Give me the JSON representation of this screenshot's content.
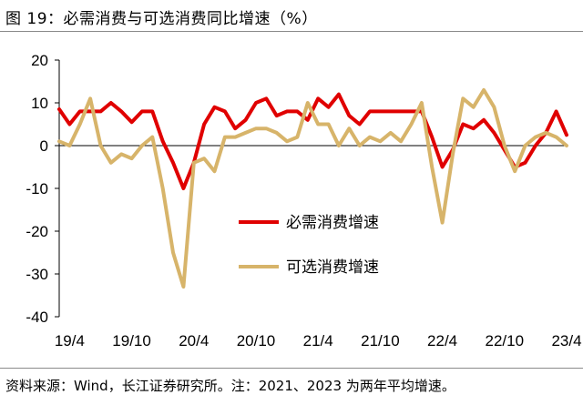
{
  "header": {
    "title": "图 19：必需消费与可选消费同比增速（%）"
  },
  "footer": {
    "source": "资料来源：Wind，长江证券研究所。注：2021、2023 为两年平均增速。"
  },
  "chart_data": {
    "type": "line",
    "title": "图 19：必需消费与可选消费同比增速（%）",
    "xlabel": "",
    "ylabel": "",
    "ylim": [
      -40,
      20
    ],
    "yticks": [
      20,
      10,
      0,
      -10,
      -20,
      -30,
      -40
    ],
    "x_tick_labels": [
      "19/4",
      "19/10",
      "20/4",
      "20/10",
      "21/4",
      "21/10",
      "22/4",
      "22/10",
      "23/4"
    ],
    "x": [
      "19/3",
      "19/4",
      "19/5",
      "19/6",
      "19/7",
      "19/8",
      "19/9",
      "19/10",
      "19/11",
      "19/12",
      "20/1",
      "20/2",
      "20/3",
      "20/4",
      "20/5",
      "20/6",
      "20/7",
      "20/8",
      "20/9",
      "20/10",
      "20/11",
      "20/12",
      "21/1",
      "21/2",
      "21/3",
      "21/4",
      "21/5",
      "21/6",
      "21/7",
      "21/8",
      "21/9",
      "21/10",
      "21/11",
      "21/12",
      "22/1",
      "22/2",
      "22/3",
      "22/4",
      "22/5",
      "22/6",
      "22/7",
      "22/8",
      "22/9",
      "22/10",
      "22/11",
      "22/12",
      "23/1",
      "23/2",
      "23/3",
      "23/4"
    ],
    "legend_position": "center-right",
    "grid": false,
    "series": [
      {
        "name": "必需消费增速",
        "color": "#e00000",
        "values": [
          8.5,
          5,
          8,
          8,
          8,
          10,
          8,
          5.5,
          8,
          8,
          1,
          -4,
          -10,
          -4,
          5,
          9,
          8,
          4,
          6,
          10,
          11,
          7,
          8,
          8,
          6,
          11,
          9,
          12,
          7,
          5,
          8,
          8,
          8,
          8,
          8,
          8,
          2,
          -5,
          -1,
          5,
          4,
          6,
          3,
          -1,
          -5,
          -4,
          0,
          3,
          8,
          2.5
        ]
      },
      {
        "name": "可选消费增速",
        "color": "#d7b46a",
        "values": [
          1,
          0,
          5,
          11,
          0,
          -4,
          -2,
          -3,
          0,
          2,
          -10,
          -25,
          -33,
          -4,
          -3,
          -6,
          2,
          2,
          3,
          4,
          4,
          3,
          1,
          2,
          10,
          5,
          5,
          0,
          4,
          0,
          2,
          1,
          3,
          1,
          5,
          10,
          -5,
          -18,
          -2,
          11,
          9,
          13,
          9,
          0,
          -6,
          0,
          2,
          3,
          2,
          0
        ]
      }
    ]
  }
}
